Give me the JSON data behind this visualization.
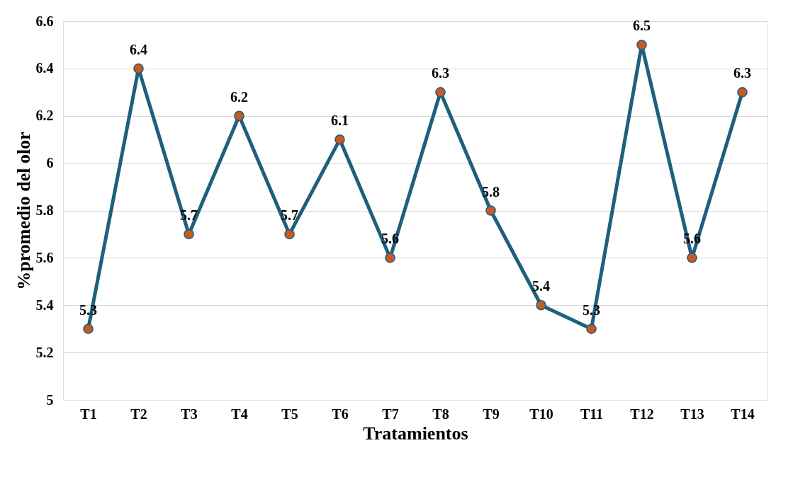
{
  "chart_data": {
    "type": "line",
    "xlabel": "Tratamientos",
    "ylabel": "%promedio del olor",
    "categories": [
      "T1",
      "T2",
      "T3",
      "T4",
      "T5",
      "T6",
      "T7",
      "T8",
      "T9",
      "T10",
      "T11",
      "T12",
      "T13",
      "T14"
    ],
    "series": [
      {
        "color": "#1f5f7e",
        "values": [
          5.3,
          6.4,
          5.7,
          6.2,
          5.7,
          6.1,
          5.6,
          6.3,
          5.8,
          5.4,
          5.3,
          6.5,
          5.6,
          6.3
        ]
      }
    ],
    "colors": [
      "#c55a22",
      "#c55a22",
      "#c55a22",
      "#c55a22",
      "#c55a22",
      "#c55a22",
      "#c55a22",
      "#c55a22",
      "#c55a22",
      "#c55a22",
      "#c55a22",
      "#c55a22",
      "#c55a22",
      "#c55a22"
    ],
    "ylim": [
      5,
      6.6
    ],
    "yticks": [
      5,
      5.2,
      5.4,
      5.6,
      5.8,
      6,
      6.2,
      6.4,
      6.6
    ],
    "grid": "y",
    "marker": "circle",
    "line_style": "solid",
    "data_labels": true
  }
}
